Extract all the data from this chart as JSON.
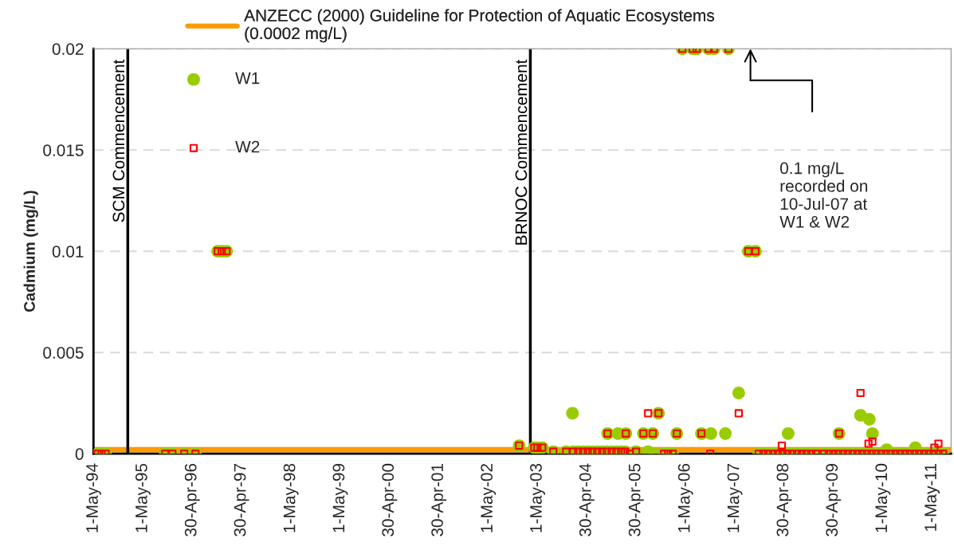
{
  "chart_data": {
    "type": "scatter",
    "ylabel": "Cadmium (mg/L)",
    "xlim": [
      "1994-05-01",
      "2011-09-20"
    ],
    "ylim": [
      0,
      0.02
    ],
    "yticks": [
      0,
      0.005,
      0.01,
      0.015,
      0.02
    ],
    "xticks": [
      {
        "value": "1994-05-01",
        "label": "1-May-94"
      },
      {
        "value": "1995-05-01",
        "label": "1-May-95"
      },
      {
        "value": "1996-04-30",
        "label": "30-Apr-96"
      },
      {
        "value": "1997-04-30",
        "label": "30-Apr-97"
      },
      {
        "value": "1998-05-01",
        "label": "1-May-98"
      },
      {
        "value": "1999-05-01",
        "label": "1-May-99"
      },
      {
        "value": "2000-04-30",
        "label": "30-Apr-00"
      },
      {
        "value": "2001-04-30",
        "label": "30-Apr-01"
      },
      {
        "value": "2002-05-01",
        "label": "1-May-02"
      },
      {
        "value": "2003-05-01",
        "label": "1-May-03"
      },
      {
        "value": "2004-04-30",
        "label": "30-Apr-04"
      },
      {
        "value": "2005-04-30",
        "label": "30-Apr-05"
      },
      {
        "value": "2006-05-01",
        "label": "1-May-06"
      },
      {
        "value": "2007-05-01",
        "label": "1-May-07"
      },
      {
        "value": "2008-04-30",
        "label": "30-Apr-08"
      },
      {
        "value": "2009-04-30",
        "label": "30-Apr-09"
      },
      {
        "value": "2010-05-01",
        "label": "1-May-10"
      },
      {
        "value": "2011-05-01",
        "label": "1-May-11"
      }
    ],
    "grid": "y",
    "legend": "top left",
    "series": [
      {
        "name": "W1",
        "color": "#99cc00",
        "marker": "circle",
        "x": [
          "1994-05-31",
          "1994-06-30",
          "1994-07-30",
          "1995-10-14",
          "1995-12-06",
          "1996-03-03",
          "1996-05-25",
          "1996-11-06",
          "1996-12-06",
          "1997-01-10",
          "2002-12-17",
          "2003-04-08",
          "2003-05-01",
          "2003-06-06",
          "2003-08-27",
          "2003-11-30",
          "2004-01-22",
          "2004-02-27",
          "2004-04-03",
          "2004-05-08",
          "2004-06-12",
          "2004-07-17",
          "2004-08-22",
          "2004-09-26",
          "2004-11-01",
          "2004-12-06",
          "2005-01-10",
          "2005-02-08",
          "2004-01-16",
          "2004-10-02",
          "2004-12-18",
          "2005-02-14",
          "2005-03-16",
          "2005-05-01",
          "2005-06-24",
          "2005-09-02",
          "2005-10-14",
          "2005-07-29",
          "2005-09-14",
          "2005-11-24",
          "2005-12-23",
          "2006-01-28",
          "2006-02-27",
          "2006-04-08",
          "2006-06-24",
          "2006-07-24",
          "2006-10-20",
          "2006-11-30",
          "2007-03-16",
          "2006-08-28",
          "2006-11-06",
          "2007-02-21",
          "2007-05-31",
          "2007-08-10",
          "2007-10-02",
          "2007-10-26",
          "2007-11-30",
          "2008-01-04",
          "2008-02-08",
          "2008-03-15",
          "2008-04-20",
          "2008-05-25",
          "2008-06-29",
          "2008-08-04",
          "2008-09-08",
          "2008-10-14",
          "2008-11-18",
          "2008-12-23",
          "2008-05-31",
          "2009-02-21",
          "2009-03-28",
          "2009-05-01",
          "2009-06-06",
          "2009-07-11",
          "2009-08-15",
          "2009-09-20",
          "2009-10-26",
          "2009-11-30",
          "2010-01-04",
          "2010-02-08",
          "2010-03-15",
          "2010-04-20",
          "2010-05-25",
          "2010-06-29",
          "2010-08-04",
          "2010-09-08",
          "2010-10-14",
          "2010-11-18",
          "2010-12-23",
          "2011-01-27",
          "2011-03-04",
          "2011-04-08",
          "2011-05-13",
          "2011-06-18",
          "2011-07-23",
          "2009-06-12",
          "2009-11-18",
          "2010-01-22",
          "2010-02-14",
          "2010-05-31",
          "2010-12-29"
        ],
        "values": [
          0,
          0,
          0,
          0,
          0,
          0,
          0,
          0.01,
          0.01,
          0.01,
          0.0004,
          0.0003,
          0.0003,
          0.0003,
          0.0001,
          0.0001,
          0.0001,
          0.0001,
          0.0001,
          0.0001,
          0.0001,
          0.0001,
          0.0001,
          0.0001,
          0.0001,
          0.0001,
          0.0001,
          0.0001,
          0.002,
          0.001,
          0.001,
          0.001,
          0,
          0.0001,
          0.001,
          0.001,
          0.002,
          0.0001,
          0,
          0,
          0,
          0,
          0.001,
          0.02,
          0.02,
          0.02,
          0.02,
          0.02,
          0.02,
          0.001,
          0.001,
          0.001,
          0.003,
          0.01,
          0.01,
          0,
          0,
          0,
          0,
          0,
          0,
          0,
          0,
          0,
          0,
          0,
          0,
          0,
          0.001,
          0,
          0,
          0,
          0,
          0,
          0,
          0,
          0,
          0,
          0,
          0,
          0,
          0,
          0,
          0,
          0,
          0,
          0,
          0,
          0,
          0,
          0,
          0,
          0,
          0,
          0,
          0.001,
          0.0019,
          0.0017,
          0.001,
          0.0002,
          0.0003
        ]
      },
      {
        "name": "W2",
        "color": "#ff0000",
        "marker": "square",
        "x": [
          "1994-05-31",
          "1994-06-30",
          "1994-07-30",
          "1995-10-14",
          "1995-12-06",
          "1996-03-03",
          "1996-05-25",
          "1996-11-06",
          "1996-12-06",
          "1997-01-10",
          "2002-12-17",
          "2003-04-08",
          "2003-05-01",
          "2003-06-06",
          "2003-08-27",
          "2003-11-30",
          "2004-01-22",
          "2004-02-27",
          "2004-04-03",
          "2004-05-08",
          "2004-06-12",
          "2004-07-17",
          "2004-08-22",
          "2004-09-26",
          "2004-11-01",
          "2004-12-06",
          "2005-01-10",
          "2005-02-08",
          "2004-10-02",
          "2005-02-14",
          "2005-03-16",
          "2005-05-01",
          "2005-06-24",
          "2005-09-02",
          "2005-07-29",
          "2005-10-14",
          "2005-11-24",
          "2005-12-23",
          "2006-01-28",
          "2006-02-27",
          "2006-04-08",
          "2006-06-24",
          "2006-07-24",
          "2006-10-20",
          "2006-11-30",
          "2007-03-16",
          "2006-08-28",
          "2006-11-01",
          "2007-05-31",
          "2007-08-10",
          "2007-10-02",
          "2007-10-26",
          "2007-11-30",
          "2008-01-04",
          "2008-02-08",
          "2008-03-15",
          "2008-04-20",
          "2008-05-25",
          "2008-06-29",
          "2008-08-04",
          "2008-09-08",
          "2008-10-14",
          "2008-11-18",
          "2008-12-23",
          "2008-04-14",
          "2009-02-21",
          "2009-03-28",
          "2009-05-01",
          "2009-06-06",
          "2009-07-11",
          "2009-08-15",
          "2009-09-20",
          "2009-10-26",
          "2009-11-30",
          "2010-01-04",
          "2010-02-08",
          "2010-03-15",
          "2010-04-20",
          "2010-05-25",
          "2010-06-29",
          "2010-08-04",
          "2010-09-08",
          "2010-10-14",
          "2010-11-18",
          "2010-12-23",
          "2011-01-27",
          "2011-03-04",
          "2011-04-08",
          "2011-05-13",
          "2011-06-18",
          "2011-07-23",
          "2009-06-12",
          "2009-11-18",
          "2010-01-16",
          "2010-02-14",
          "2011-05-19",
          "2011-06-18"
        ],
        "values": [
          0,
          0,
          0,
          0,
          0,
          0,
          0,
          0.01,
          0.01,
          0.01,
          0.0004,
          0.0003,
          0.0003,
          0.0003,
          0.0001,
          0.0001,
          0.0001,
          0.0001,
          0.0001,
          0.0001,
          0.0001,
          0.0001,
          0.0001,
          0.0001,
          0.0001,
          0.0001,
          0.0001,
          0.0001,
          0.001,
          0.001,
          0,
          0.0001,
          0.001,
          0.001,
          0.002,
          0.002,
          0,
          0,
          0,
          0.001,
          0.02,
          0.02,
          0.02,
          0.02,
          0.02,
          0.02,
          0.001,
          0,
          0.002,
          0.01,
          0.01,
          0,
          0,
          0,
          0,
          0,
          0,
          0,
          0,
          0,
          0,
          0,
          0,
          0,
          0.0004,
          0,
          0,
          0,
          0,
          0,
          0,
          0,
          0,
          0,
          0,
          0,
          0,
          0,
          0,
          0,
          0,
          0,
          0,
          0,
          0,
          0,
          0,
          0,
          0,
          0,
          0,
          0.001,
          0.003,
          0.0005,
          0.0006,
          0.0003,
          0.0005
        ]
      }
    ],
    "ref_lines": [
      {
        "axis": "y",
        "value": 0.0002,
        "label": "ANZECC (2000) Guideline for Protection of Aquatic Ecosystems\n(0.0002 mg/L)",
        "color": "#ff9900"
      },
      {
        "axis": "x",
        "value": "1995-01-10",
        "label": "SCM Commencement",
        "color": "#000000"
      },
      {
        "axis": "x",
        "value": "2003-03-10",
        "label": "BRNOC Commencement",
        "color": "#000000"
      }
    ],
    "annotations": [
      "0.1 mg/L\nrecorded on\n10-Jul-07 at\nW1 & W2"
    ]
  }
}
